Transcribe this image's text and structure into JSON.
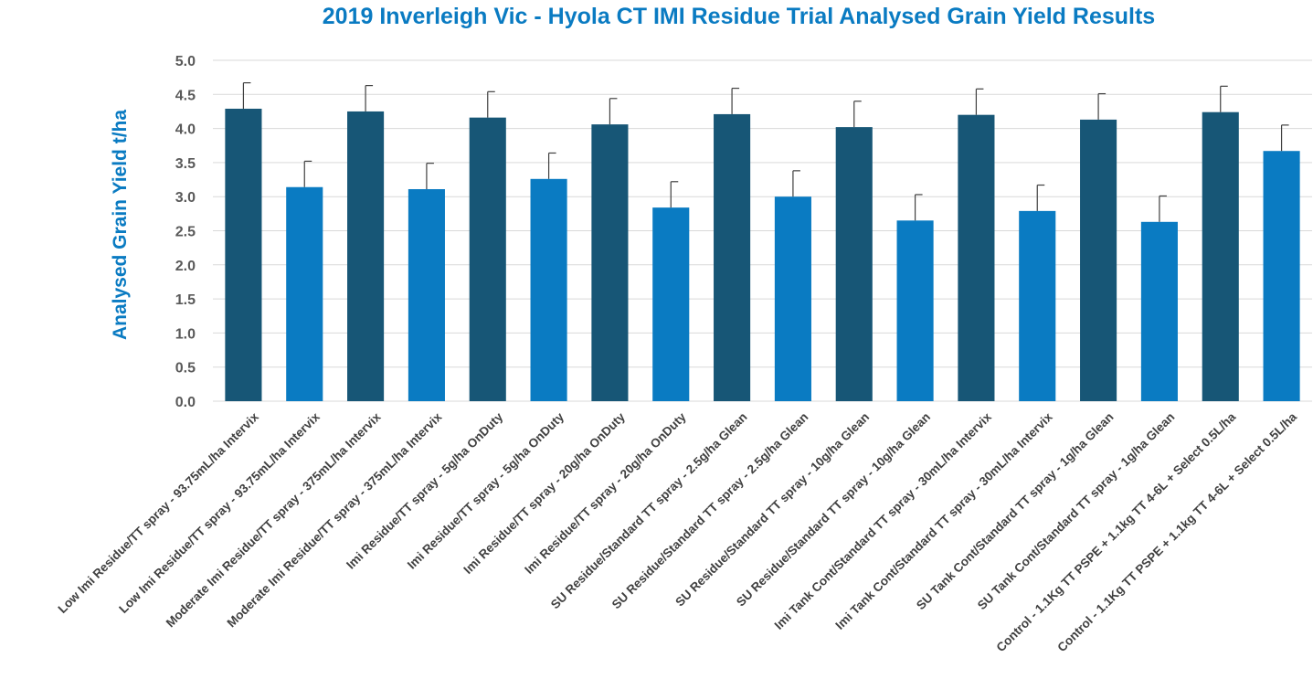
{
  "chart_data": {
    "type": "bar",
    "title": "2019 Inverleigh Vic - Hyola CT IMI Residue Trial Analysed Grain Yield Results",
    "xlabel": "",
    "ylabel": "Analysed Grain Yield t/ha",
    "ylim": [
      0,
      5
    ],
    "yticks": [
      "0.0",
      "0.5",
      "1.0",
      "1.5",
      "2.0",
      "2.5",
      "3.0",
      "3.5",
      "4.0",
      "4.5",
      "5.0"
    ],
    "grid": true,
    "categories": [
      "Low Imi Residue/TT spray - 93.75mL/ha Intervix",
      "Low Imi Residue/TT spray - 93.75mL/ha Intervix",
      "Moderate Imi Residue/TT spray - 375mL/ha Intervix",
      "Moderate Imi Residue/TT spray - 375mL/ha Intervix",
      "Imi Residue/TT spray - 5g/ha OnDuty",
      "Imi Residue/TT spray - 5g/ha OnDuty",
      "Imi Residue/TT spray - 20g/ha OnDuty",
      "Imi Residue/TT spray - 20g/ha OnDuty",
      "SU Residue/Standard TT spray - 2.5g/ha Glean",
      "SU Residue/Standard TT spray - 2.5g/ha Glean",
      "SU Residue/Standard TT spray - 10g/ha Glean",
      "SU Residue/Standard TT spray - 10g/ha Glean",
      "Imi Tank Cont/Standard TT spray - 30mL/ha Intervix",
      "Imi Tank Cont/Standard TT spray - 30mL/ha Intervix",
      "SU Tank Cont/Standard TT spray - 1g/ha Glean",
      "SU Tank Cont/Standard TT spray - 1g/ha Glean",
      "Control - 1.1Kg TT PSPE + 1.1kg TT 4-6L + Select 0.5L/ha",
      "Control - 1.1Kg TT PSPE + 1.1kg TT 4-6L + Select 0.5L/ha"
    ],
    "values": [
      4.29,
      3.14,
      4.25,
      3.11,
      4.16,
      3.26,
      4.06,
      2.84,
      4.21,
      3.0,
      4.02,
      2.65,
      4.2,
      2.79,
      4.13,
      2.63,
      4.24,
      3.67
    ],
    "error": [
      0.38,
      0.38,
      0.38,
      0.38,
      0.38,
      0.38,
      0.38,
      0.38,
      0.38,
      0.38,
      0.38,
      0.38,
      0.38,
      0.38,
      0.38,
      0.38,
      0.38,
      0.38
    ],
    "colors": [
      "#175676",
      "#0a7bc2",
      "#175676",
      "#0a7bc2",
      "#175676",
      "#0a7bc2",
      "#175676",
      "#0a7bc2",
      "#175676",
      "#0a7bc2",
      "#175676",
      "#0a7bc2",
      "#175676",
      "#0a7bc2",
      "#175676",
      "#0a7bc2",
      "#175676",
      "#0a7bc2"
    ],
    "grid_color": "#d9d9d9",
    "error_bar_color": "#404040"
  }
}
